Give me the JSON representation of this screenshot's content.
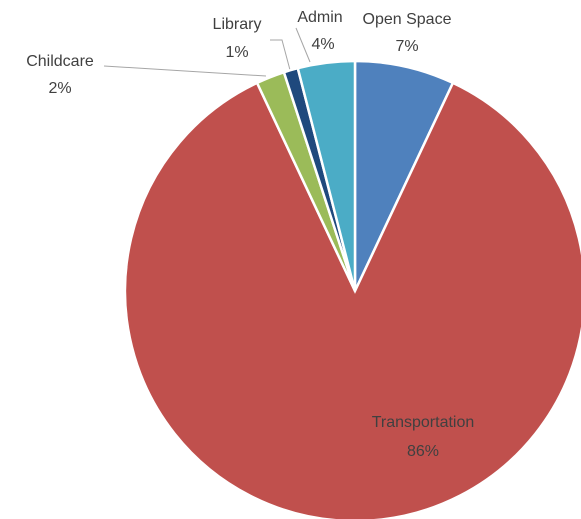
{
  "chart_data": {
    "type": "pie",
    "categories": [
      "Open Space",
      "Transportation",
      "Childcare",
      "Library",
      "Admin"
    ],
    "values": [
      7,
      86,
      2,
      1,
      4
    ],
    "value_labels": [
      "7%",
      "86%",
      "2%",
      "1%",
      "4%"
    ],
    "colors": [
      "#4f81bd",
      "#c0504d",
      "#9bbb59",
      "#1f497d",
      "#4bacc6"
    ]
  }
}
